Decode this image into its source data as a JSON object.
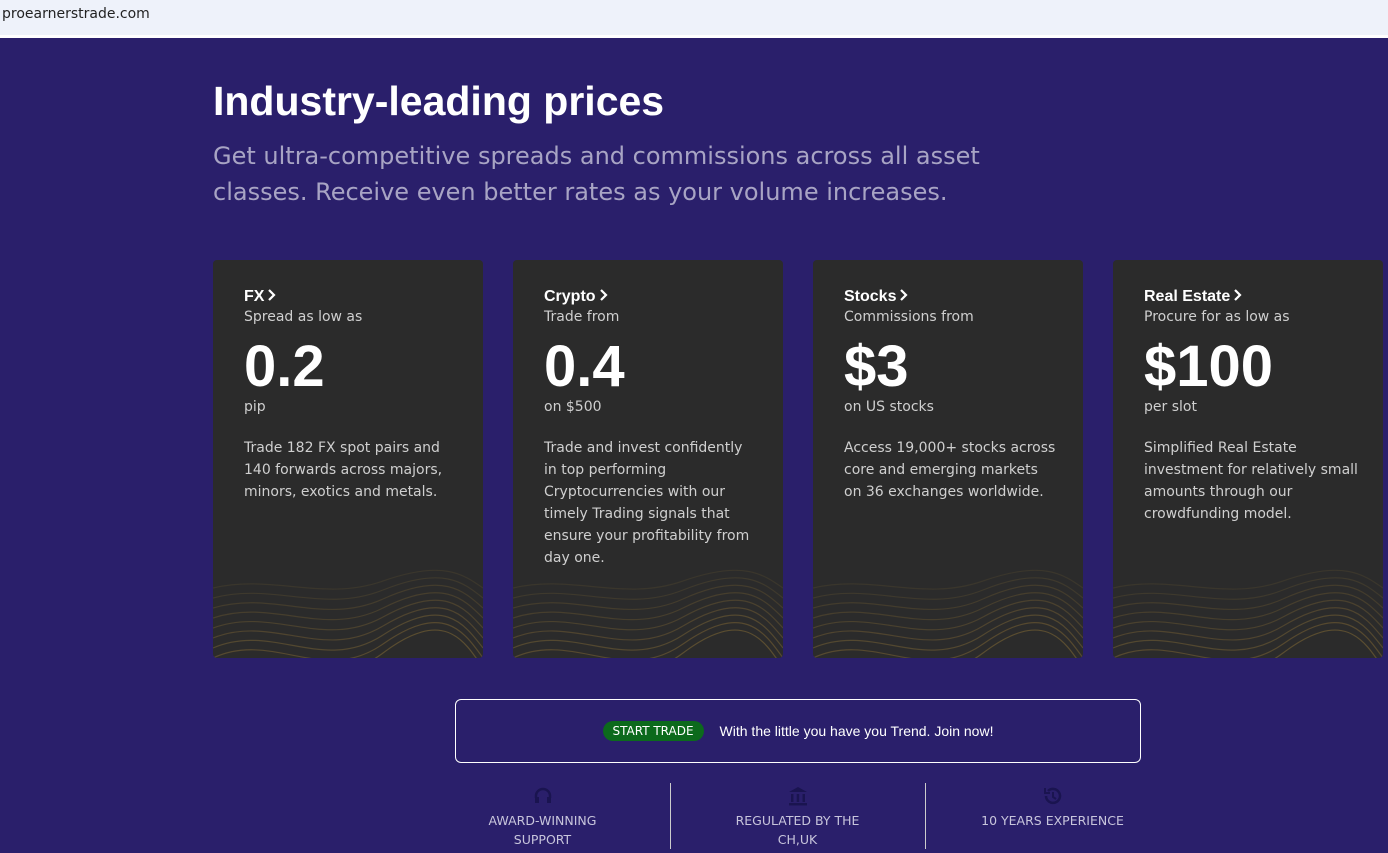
{
  "browser": {
    "url": "proearnerstrade.com"
  },
  "hero": {
    "title": "Industry-leading prices",
    "subtitle": "Get ultra-competitive spreads and commissions across all asset classes. Receive even better rates as your volume increases."
  },
  "cards": [
    {
      "name": "FX",
      "label": "Spread as low as",
      "price": "0.2",
      "unit": "pip",
      "description": "Trade 182 FX spot pairs and 140 forwards across majors, minors, exotics and metals."
    },
    {
      "name": "Crypto",
      "label": "Trade from",
      "price": "0.4",
      "unit": "on $500",
      "description": "Trade and invest confidently in top performing Cryptocurrencies with our timely Trading signals that ensure your profitability from day one."
    },
    {
      "name": "Stocks",
      "label": "Commissions from",
      "price": "$3",
      "unit": "on US stocks",
      "description": "Access 19,000+ stocks across core and emerging markets on 36 exchanges worldwide."
    },
    {
      "name": "Real Estate",
      "label": "Procure for as low as",
      "price": "$100",
      "unit": "per slot",
      "description": "Simplified Real Estate investment for relatively small amounts through our crowdfunding model."
    }
  ],
  "cta": {
    "button": "START TRADE",
    "text": "With the little you have you Trend. Join now!"
  },
  "features": [
    "AWARD-WINNING SUPPORT",
    "REGULATED BY THE CH,UK",
    "10 YEARS EXPERIENCE"
  ]
}
